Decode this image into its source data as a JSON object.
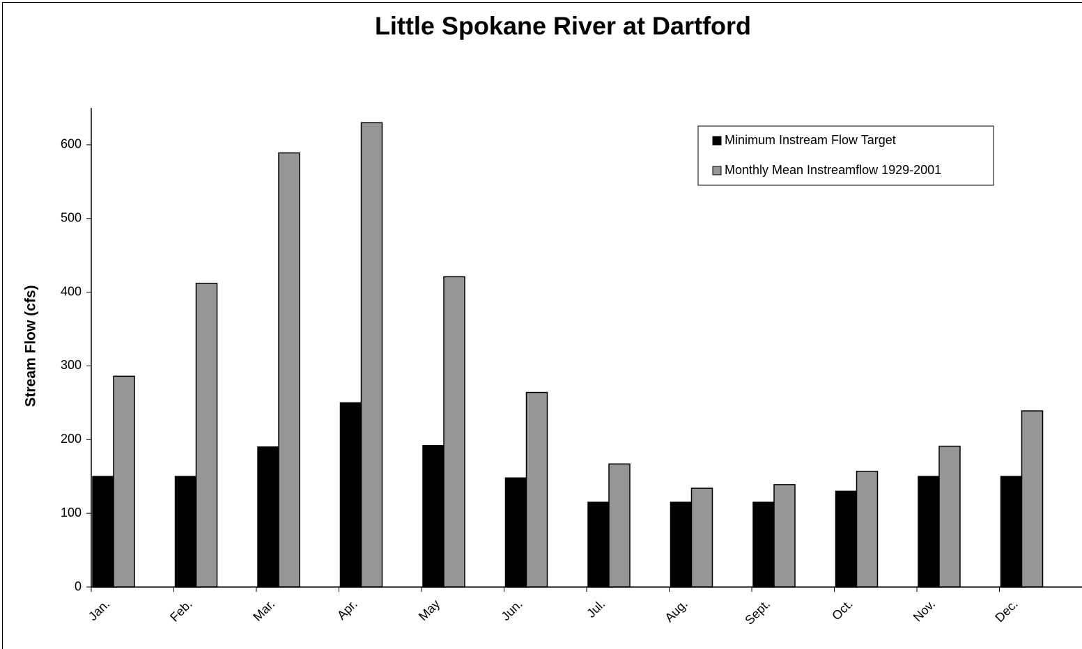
{
  "chart_data": {
    "type": "bar",
    "title": "Little Spokane River at Dartford",
    "y_label": "Stream Flow (cfs)",
    "categories": [
      "Jan.",
      "Feb.",
      "Mar.",
      "Apr.",
      "May",
      "Jun.",
      "Jul.",
      "Aug.",
      "Sept.",
      "Oct.",
      "Nov.",
      "Dec."
    ],
    "series": [
      {
        "name": "Minimum Instream Flow Target",
        "color": "#000000",
        "values": [
          150,
          150,
          190,
          250,
          192,
          148,
          115,
          115,
          115,
          130,
          150,
          150
        ]
      },
      {
        "name": "Monthly Mean Instreamflow 1929-2001",
        "color": "#969696",
        "values": [
          286,
          412,
          589,
          630,
          421,
          264,
          167,
          134,
          139,
          157,
          191,
          239
        ]
      }
    ],
    "ylim": [
      0,
      650
    ],
    "yticks": [
      0,
      100,
      200,
      300,
      400,
      500,
      600
    ],
    "grid": false,
    "legend": "upper right"
  }
}
